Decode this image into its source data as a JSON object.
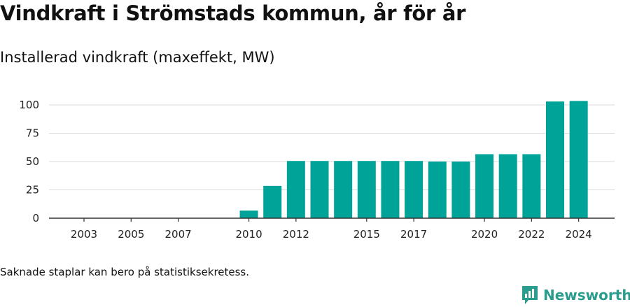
{
  "title": "Vindkraft i Strömstads kommun, år för år",
  "subtitle": "Installerad vindkraft (maxeffekt, MW)",
  "note": "Saknade staplar kan bero på statistiksekretess.",
  "brand": {
    "name": "Newsworthy",
    "color": "#2a9d8f"
  },
  "colors": {
    "bar": "#00a398",
    "grid": "#d9d9d9",
    "axis": "#333333"
  },
  "chart_data": {
    "type": "bar",
    "categories": [
      "2003",
      "2004",
      "2005",
      "2006",
      "2007",
      "2008",
      "2009",
      "2010",
      "2011",
      "2012",
      "2013",
      "2014",
      "2015",
      "2016",
      "2017",
      "2018",
      "2019",
      "2020",
      "2021",
      "2022",
      "2023",
      "2024"
    ],
    "values": [
      null,
      null,
      null,
      null,
      null,
      null,
      null,
      6.7,
      28.5,
      50.5,
      50.5,
      50.5,
      50.5,
      50.5,
      50.5,
      50,
      50,
      56.5,
      56.5,
      56.5,
      103,
      103.5
    ],
    "x_tick_labels": [
      "2003",
      "2005",
      "2007",
      "2010",
      "2012",
      "2015",
      "2017",
      "2020",
      "2022",
      "2024"
    ],
    "y_ticks": [
      0,
      25,
      50,
      75,
      100
    ],
    "ylim": [
      0,
      112
    ],
    "grid": true,
    "legend": "none"
  }
}
